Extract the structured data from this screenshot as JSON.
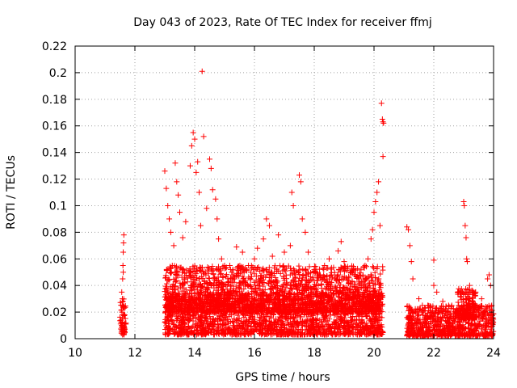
{
  "chart_data": {
    "type": "scatter",
    "title": "Day 043 of 2023, Rate Of TEC Index for receiver ffmj",
    "xlabel": "GPS time / hours",
    "ylabel": "ROTI / TECUs",
    "xlim": [
      10,
      24
    ],
    "ylim": [
      0,
      0.22
    ],
    "x_ticks": [
      "10",
      "12",
      "14",
      "16",
      "18",
      "20",
      "22",
      "24"
    ],
    "y_ticks": [
      "0",
      "0.02",
      "0.04",
      "0.06",
      "0.08",
      "0.1",
      "0.12",
      "0.14",
      "0.16",
      "0.18",
      "0.2",
      "0.22"
    ],
    "grid": true,
    "marker": "+",
    "series": [
      {
        "name": "ROTI",
        "color": "#ff0000",
        "points": [
          [
            11.55,
            0.005
          ],
          [
            11.56,
            0.01
          ],
          [
            11.57,
            0.02
          ],
          [
            11.58,
            0.03
          ],
          [
            11.59,
            0.045
          ],
          [
            11.6,
            0.055
          ],
          [
            11.61,
            0.065
          ],
          [
            11.62,
            0.072
          ],
          [
            11.63,
            0.078
          ],
          [
            11.6,
            0.025
          ],
          [
            11.58,
            0.015
          ],
          [
            11.62,
            0.008
          ],
          [
            11.56,
            0.035
          ],
          [
            11.61,
            0.05
          ],
          [
            13.0,
            0.126
          ],
          [
            13.05,
            0.113
          ],
          [
            13.1,
            0.1
          ],
          [
            13.15,
            0.09
          ],
          [
            13.2,
            0.08
          ],
          [
            13.3,
            0.07
          ],
          [
            13.35,
            0.132
          ],
          [
            13.4,
            0.118
          ],
          [
            13.45,
            0.108
          ],
          [
            13.5,
            0.095
          ],
          [
            13.6,
            0.076
          ],
          [
            13.7,
            0.088
          ],
          [
            13.85,
            0.13
          ],
          [
            13.9,
            0.145
          ],
          [
            13.95,
            0.155
          ],
          [
            14.0,
            0.15
          ],
          [
            14.05,
            0.125
          ],
          [
            14.1,
            0.133
          ],
          [
            14.15,
            0.11
          ],
          [
            14.2,
            0.085
          ],
          [
            14.25,
            0.201
          ],
          [
            14.3,
            0.152
          ],
          [
            14.4,
            0.098
          ],
          [
            14.5,
            0.135
          ],
          [
            14.55,
            0.128
          ],
          [
            14.6,
            0.112
          ],
          [
            14.7,
            0.105
          ],
          [
            14.75,
            0.09
          ],
          [
            14.8,
            0.075
          ],
          [
            14.9,
            0.06
          ],
          [
            15.0,
            0.055
          ],
          [
            15.2,
            0.052
          ],
          [
            15.4,
            0.069
          ],
          [
            15.6,
            0.065
          ],
          [
            15.8,
            0.055
          ],
          [
            16.0,
            0.06
          ],
          [
            16.1,
            0.068
          ],
          [
            16.3,
            0.075
          ],
          [
            16.4,
            0.09
          ],
          [
            16.5,
            0.085
          ],
          [
            16.6,
            0.062
          ],
          [
            16.8,
            0.078
          ],
          [
            17.0,
            0.065
          ],
          [
            17.2,
            0.07
          ],
          [
            17.25,
            0.11
          ],
          [
            17.3,
            0.1
          ],
          [
            17.5,
            0.123
          ],
          [
            17.55,
            0.118
          ],
          [
            17.6,
            0.09
          ],
          [
            17.7,
            0.08
          ],
          [
            17.8,
            0.065
          ],
          [
            18.0,
            0.052
          ],
          [
            18.2,
            0.048
          ],
          [
            18.5,
            0.06
          ],
          [
            18.8,
            0.066
          ],
          [
            18.9,
            0.073
          ],
          [
            19.0,
            0.058
          ],
          [
            19.2,
            0.05
          ],
          [
            19.5,
            0.045
          ],
          [
            19.7,
            0.055
          ],
          [
            19.8,
            0.06
          ],
          [
            19.9,
            0.075
          ],
          [
            19.95,
            0.082
          ],
          [
            20.0,
            0.095
          ],
          [
            20.05,
            0.103
          ],
          [
            20.1,
            0.11
          ],
          [
            20.15,
            0.118
          ],
          [
            20.2,
            0.085
          ],
          [
            20.25,
            0.177
          ],
          [
            20.28,
            0.165
          ],
          [
            20.3,
            0.163
          ],
          [
            20.32,
            0.162
          ],
          [
            20.3,
            0.137
          ],
          [
            21.1,
            0.084
          ],
          [
            21.15,
            0.082
          ],
          [
            21.2,
            0.07
          ],
          [
            21.25,
            0.058
          ],
          [
            21.3,
            0.045
          ],
          [
            21.5,
            0.03
          ],
          [
            21.8,
            0.025
          ],
          [
            22.0,
            0.059
          ],
          [
            22.0,
            0.04
          ],
          [
            22.1,
            0.035
          ],
          [
            22.3,
            0.028
          ],
          [
            22.6,
            0.025
          ],
          [
            22.8,
            0.035
          ],
          [
            23.0,
            0.103
          ],
          [
            23.02,
            0.1
          ],
          [
            23.05,
            0.085
          ],
          [
            23.08,
            0.076
          ],
          [
            23.1,
            0.06
          ],
          [
            23.12,
            0.058
          ],
          [
            23.2,
            0.04
          ],
          [
            23.4,
            0.035
          ],
          [
            23.6,
            0.03
          ],
          [
            23.8,
            0.045
          ],
          [
            23.85,
            0.048
          ],
          [
            23.9,
            0.04
          ]
        ],
        "dense_band": {
          "description": "Dense cluster of low ROTI values",
          "segments": [
            {
              "x": [
                11.5,
                11.7
              ],
              "y": [
                0.003,
                0.03
              ]
            },
            {
              "x": [
                13.0,
                20.3
              ],
              "y": [
                0.003,
                0.035
              ]
            },
            {
              "x": [
                13.0,
                20.3
              ],
              "y": [
                0.02,
                0.055
              ]
            },
            {
              "x": [
                21.1,
                24.0
              ],
              "y": [
                0.002,
                0.025
              ]
            },
            {
              "x": [
                22.8,
                23.4
              ],
              "y": [
                0.015,
                0.038
              ]
            }
          ]
        }
      }
    ]
  }
}
